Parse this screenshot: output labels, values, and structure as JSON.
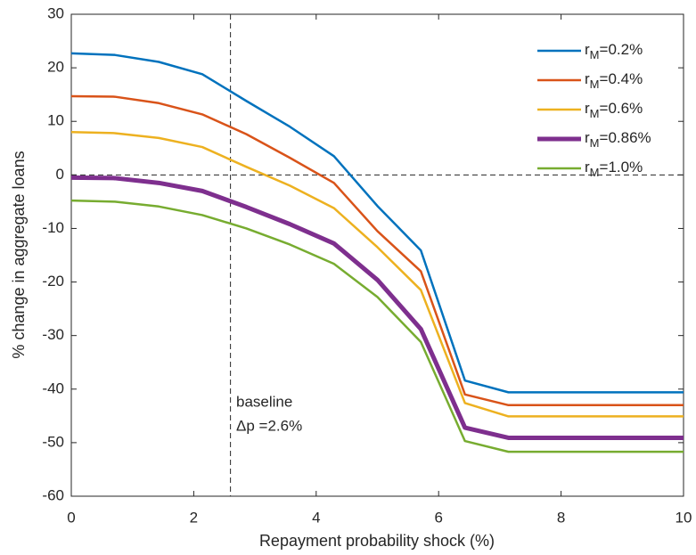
{
  "chart_data": {
    "type": "line",
    "xlabel": "Repayment probability shock (%)",
    "ylabel": "% change in aggregate loans",
    "x": [
      0,
      0.71,
      1.43,
      2.14,
      2.86,
      3.57,
      4.29,
      5.0,
      5.71,
      6.43,
      7.14,
      7.86,
      8.57,
      9.29,
      10
    ],
    "series": [
      {
        "name": "rM=0.2%",
        "color": "#0072bd",
        "linewidth": 2.5,
        "values": [
          22.7,
          22.4,
          21.1,
          18.8,
          13.8,
          9.0,
          3.5,
          -5.8,
          -14.1,
          -38.4,
          -40.6,
          -40.6,
          -40.6,
          -40.6,
          -40.6
        ]
      },
      {
        "name": "rM=0.4%",
        "color": "#d95319",
        "linewidth": 2.5,
        "values": [
          14.7,
          14.6,
          13.4,
          11.3,
          7.6,
          3.2,
          -1.5,
          -10.5,
          -18.0,
          -41.0,
          -43.0,
          -43.0,
          -43.0,
          -43.0,
          -43.0
        ]
      },
      {
        "name": "rM=0.6%",
        "color": "#edb120",
        "linewidth": 2.5,
        "values": [
          8.0,
          7.8,
          6.9,
          5.2,
          1.5,
          -2.0,
          -6.2,
          -13.5,
          -21.5,
          -42.6,
          -45.1,
          -45.1,
          -45.1,
          -45.1,
          -45.1
        ]
      },
      {
        "name": "rM=0.86%",
        "color": "#7e2f8e",
        "linewidth": 5,
        "values": [
          -0.5,
          -0.6,
          -1.5,
          -3.0,
          -6.0,
          -9.2,
          -12.8,
          -19.6,
          -28.8,
          -47.2,
          -49.1,
          -49.1,
          -49.1,
          -49.1,
          -49.1
        ]
      },
      {
        "name": "rM=1.0%",
        "color": "#77ac30",
        "linewidth": 2.5,
        "values": [
          -4.8,
          -5.0,
          -5.9,
          -7.5,
          -10.0,
          -13.0,
          -16.6,
          -22.8,
          -31.2,
          -49.7,
          -51.7,
          -51.7,
          -51.7,
          -51.7,
          -51.7
        ]
      }
    ],
    "annotations": [
      "baseline",
      "Δp =2.6%"
    ],
    "vlines": [
      2.6
    ],
    "hlines": [
      0
    ],
    "xlim": [
      0,
      10
    ],
    "xticks": [
      0,
      2,
      4,
      6,
      8,
      10
    ],
    "ylim": [
      -60,
      30
    ],
    "yticks": [
      -60,
      -50,
      -40,
      -30,
      -20,
      -10,
      0,
      10,
      20,
      30
    ],
    "legend": "upper-right"
  }
}
